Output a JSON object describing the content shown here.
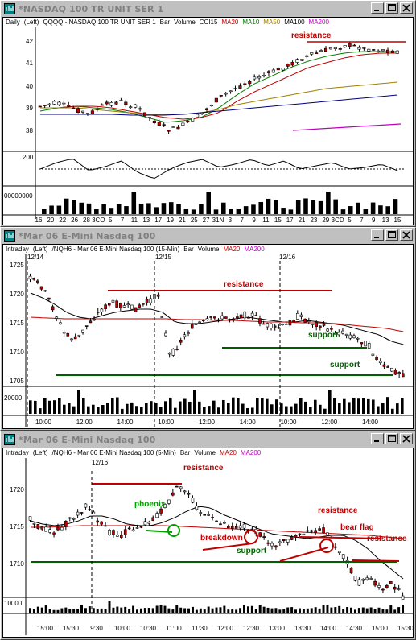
{
  "windows": [
    {
      "id": "w1",
      "title": "*NASDAQ 100 TR UNIT SER 1",
      "header": {
        "period": "Daily",
        "axis": "(Left)",
        "symbol_desc": "QQQQ - NASDAQ 100 TR UNIT SER 1",
        "chart_kind": "Bar",
        "volume": "Volume",
        "indicator": "CCI15",
        "ma20": "MA20",
        "ma10": "MA10",
        "ma50": "MA50",
        "ma100": "MA100",
        "ma200": "MA200"
      },
      "y_labels": [
        "42",
        "41",
        "40",
        "39",
        "38"
      ],
      "cci_label": "200",
      "volume_label": "00000000",
      "x_labels": [
        "16",
        "20",
        "22",
        "26",
        "28",
        "3CO",
        "5",
        "7",
        "11",
        "13",
        "17",
        "19",
        "21",
        "25",
        "27",
        "31N",
        "3",
        "7",
        "9",
        "11",
        "15",
        "17",
        "21",
        "23",
        "29",
        "3CD",
        "5",
        "7",
        "9",
        "13",
        "15"
      ],
      "annotations": {
        "resistance": "resistance"
      }
    },
    {
      "id": "w2",
      "title": "*Mar 06  E-Mini Nasdaq 100",
      "header": {
        "period": "Intraday",
        "axis": "(Left)",
        "symbol_desc": "/NQH6 - Mar 06  E-Mini Nasdaq 100 (15-Min)",
        "chart_kind": "Bar",
        "volume": "Volume",
        "ma20": "MA20",
        "ma200": "MA200"
      },
      "date_labels": [
        "12/14",
        "12/15",
        "12/16"
      ],
      "y_labels": [
        "1725",
        "1720",
        "1715",
        "1710",
        "1705"
      ],
      "volume_label": "20000",
      "x_labels": [
        "10:00",
        "12:00",
        "14:00",
        "10:00",
        "12:00",
        "14:00",
        "10:00",
        "12:00",
        "14:00"
      ],
      "annotations": {
        "resistance": "resistance",
        "support_upper": "support",
        "support_lower": "support"
      }
    },
    {
      "id": "w3",
      "title": "*Mar 06  E-Mini Nasdaq 100",
      "header": {
        "period": "Intraday",
        "axis": "(Left)",
        "symbol_desc": "/NQH6 - Mar 06  E-Mini Nasdaq 100 (5-Min)",
        "chart_kind": "Bar",
        "volume": "Volume",
        "ma20": "MA20",
        "ma200": "MA200"
      },
      "date_labels": [
        "12/16"
      ],
      "y_labels": [
        "1720",
        "1715",
        "1710"
      ],
      "volume_label": "10000",
      "x_labels": [
        "15:00",
        "15:30",
        "9:30",
        "10:00",
        "10:30",
        "11:00",
        "11:30",
        "12:00",
        "12:30",
        "13:00",
        "13:30",
        "14:00",
        "14:30",
        "15:00",
        "15:30"
      ],
      "annotations": {
        "resistance_top": "resistance",
        "phoenix": "phoenix",
        "breakdown": "breakdown",
        "support": "support",
        "resistance_mid": "resistance",
        "bear_flag": "bear flag",
        "resistance_right": "resistance"
      }
    }
  ],
  "colors": {
    "up": "#ffffff",
    "down": "#c00000",
    "ma20": "#c00000",
    "ma10": "#008000",
    "ma50": "#a08000",
    "ma100": "#000080",
    "ma200": "#c000c0",
    "support": "#006000",
    "resistance": "#c00000",
    "phoenix": "#00a000",
    "title_inactive": "#808080"
  },
  "icons": {
    "window": "chart-window-icon",
    "minimize": "minimize-icon",
    "maximize": "maximize-icon",
    "close": "close-icon"
  }
}
